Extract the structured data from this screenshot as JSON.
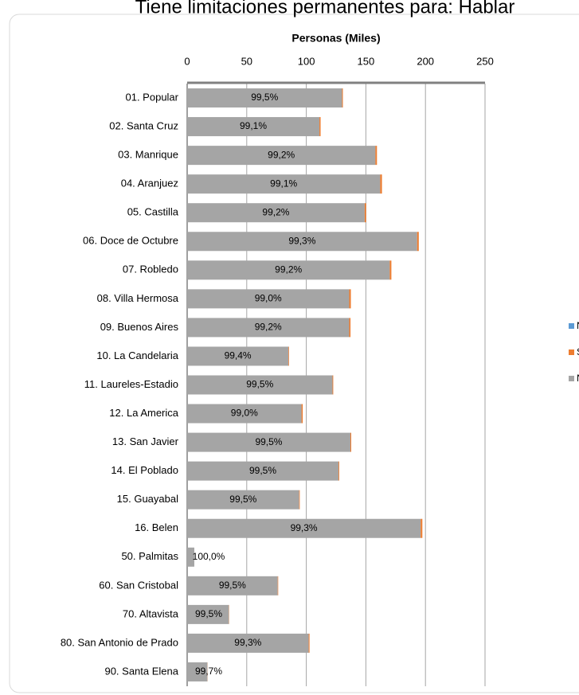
{
  "chart_data": {
    "type": "stacked_bar_horizontal",
    "title": "Tiene limitaciones permanentes para: Hablar",
    "x_label": "Personas (Miles)",
    "categories": [
      "01. Popular",
      "02. Santa Cruz",
      "03. Manrique",
      "04. Aranjuez",
      "05. Castilla",
      "06. Doce de Octubre",
      "07. Robledo",
      "08. Villa Hermosa",
      "09. Buenos Aires",
      "10. La Candelaria",
      "11. Laureles-Estadio",
      "12. La America",
      "13. San Javier",
      "14. El Poblado",
      "15. Guayabal",
      "16. Belen",
      "50. Palmitas",
      "60. San Cristobal",
      "70. Altavista",
      "80. San Antonio de Prado",
      "90. Santa Elena"
    ],
    "series": [
      {
        "name": "No",
        "color": "#a5a5a5",
        "values": [
          130,
          111,
          158,
          162,
          149,
          193,
          170,
          136,
          136,
          85,
          122,
          96,
          137,
          127,
          94,
          196,
          6,
          76,
          35,
          102,
          17
        ]
      },
      {
        "name": "Si",
        "color": "#ed7d31",
        "values": [
          0.7,
          1.0,
          1.3,
          1.5,
          1.2,
          1.4,
          1.4,
          1.4,
          1.1,
          0.5,
          0.6,
          1.0,
          0.7,
          0.6,
          0.5,
          1.4,
          0,
          0.4,
          0.2,
          0.7,
          0.1
        ]
      },
      {
        "name": "No sabe",
        "color": "#5b9bd5",
        "values": [
          0,
          0,
          0,
          0,
          0,
          0,
          0,
          0,
          0,
          0,
          0,
          0,
          0,
          0,
          0,
          0,
          0,
          0,
          0,
          0,
          0
        ]
      }
    ],
    "bar_labels": [
      "99,5%",
      "99,1%",
      "99,2%",
      "99,1%",
      "99,2%",
      "99,3%",
      "99,2%",
      "99,0%",
      "99,2%",
      "99,4%",
      "99,5%",
      "99,0%",
      "99,5%",
      "99,5%",
      "99,5%",
      "99,3%",
      "100,0%",
      "99,5%",
      "99,5%",
      "99,3%",
      "99,7%"
    ],
    "xlim": [
      0,
      250
    ],
    "xticks": [
      0,
      50,
      100,
      150,
      200,
      250
    ],
    "grid": true,
    "legend": "right"
  }
}
